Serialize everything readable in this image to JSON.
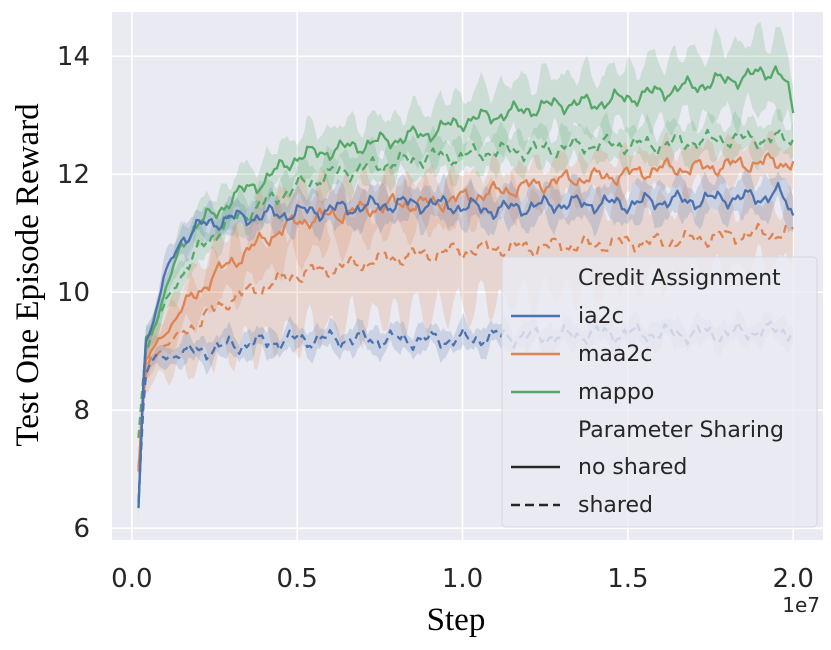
{
  "chart_data": {
    "type": "line",
    "title": "",
    "xlabel": "Step",
    "ylabel": "Test One Episode Reward",
    "x_offset_label": "1e7",
    "xlim": [
      -0.06,
      2.09
    ],
    "ylim": [
      5.8,
      14.75
    ],
    "xticks": [
      0.0,
      0.5,
      1.0,
      1.5,
      2.0
    ],
    "xtick_labels": [
      "0.0",
      "0.5",
      "1.0",
      "1.5",
      "2.0"
    ],
    "yticks": [
      6,
      8,
      10,
      12,
      14
    ],
    "ytick_labels": [
      "6",
      "8",
      "10",
      "12",
      "14"
    ],
    "grid": true,
    "legend_position": "bottom-right",
    "legend": {
      "hue_title": "Credit Assignment",
      "style_title": "Parameter Sharing",
      "hue_entries": [
        "ia2c",
        "maa2c",
        "mappo"
      ],
      "style_entries": [
        "no shared",
        "shared"
      ]
    },
    "colors": {
      "ia2c": "#4c72b0",
      "maa2c": "#dd8452",
      "mappo": "#55a868",
      "background": "#eaeaf2",
      "grid": "#ffffff"
    },
    "series": [
      {
        "name": "mappo no shared",
        "algorithm": "mappo",
        "sharing": "no shared",
        "x": [
          0.02,
          0.04,
          0.06,
          0.1,
          0.15,
          0.2,
          0.25,
          0.3,
          0.4,
          0.5,
          0.6,
          0.7,
          0.8,
          0.9,
          1.0,
          1.1,
          1.2,
          1.3,
          1.4,
          1.5,
          1.6,
          1.7,
          1.8,
          1.9,
          1.95,
          1.98,
          2.0
        ],
        "y": [
          6.3,
          9.2,
          9.3,
          10.0,
          10.8,
          11.2,
          11.3,
          11.6,
          11.9,
          12.3,
          12.4,
          12.5,
          12.6,
          12.7,
          12.9,
          13.0,
          13.1,
          13.2,
          13.2,
          13.3,
          13.4,
          13.5,
          13.6,
          13.7,
          13.8,
          13.5,
          13.0
        ],
        "band": [
          0.15,
          0.25,
          0.25,
          0.25,
          0.3,
          0.3,
          0.3,
          0.35,
          0.35,
          0.4,
          0.4,
          0.4,
          0.4,
          0.45,
          0.45,
          0.5,
          0.5,
          0.5,
          0.5,
          0.5,
          0.55,
          0.55,
          0.6,
          0.6,
          0.6,
          0.6,
          0.6
        ]
      },
      {
        "name": "mappo shared",
        "algorithm": "mappo",
        "sharing": "shared",
        "x": [
          0.02,
          0.04,
          0.06,
          0.1,
          0.15,
          0.2,
          0.25,
          0.3,
          0.4,
          0.5,
          0.6,
          0.7,
          0.8,
          0.9,
          1.0,
          1.1,
          1.2,
          1.3,
          1.4,
          1.5,
          1.6,
          1.7,
          1.8,
          1.9,
          1.95,
          2.0
        ],
        "y": [
          7.5,
          9.0,
          9.3,
          9.8,
          10.3,
          10.7,
          11.0,
          11.2,
          11.5,
          11.8,
          12.0,
          12.1,
          12.2,
          12.3,
          12.3,
          12.4,
          12.4,
          12.45,
          12.5,
          12.5,
          12.5,
          12.55,
          12.6,
          12.6,
          12.6,
          12.6
        ],
        "band": [
          0.15,
          0.2,
          0.2,
          0.25,
          0.25,
          0.25,
          0.25,
          0.3,
          0.3,
          0.3,
          0.3,
          0.3,
          0.3,
          0.3,
          0.3,
          0.3,
          0.3,
          0.3,
          0.3,
          0.3,
          0.3,
          0.3,
          0.3,
          0.3,
          0.3,
          0.3
        ]
      },
      {
        "name": "maa2c no shared",
        "algorithm": "maa2c",
        "sharing": "no shared",
        "x": [
          0.02,
          0.04,
          0.06,
          0.1,
          0.15,
          0.2,
          0.25,
          0.3,
          0.4,
          0.5,
          0.6,
          0.7,
          0.8,
          0.9,
          1.0,
          1.1,
          1.2,
          1.3,
          1.4,
          1.5,
          1.6,
          1.7,
          1.8,
          1.9,
          1.95,
          2.0
        ],
        "y": [
          7.0,
          8.8,
          9.0,
          9.3,
          9.7,
          10.0,
          10.3,
          10.5,
          10.9,
          11.2,
          11.3,
          11.4,
          11.5,
          11.5,
          11.6,
          11.7,
          11.8,
          11.9,
          11.95,
          12.0,
          12.1,
          12.1,
          12.15,
          12.2,
          12.2,
          12.2
        ],
        "band": [
          0.2,
          0.3,
          0.3,
          0.35,
          0.4,
          0.45,
          0.5,
          0.55,
          0.6,
          0.6,
          0.55,
          0.5,
          0.45,
          0.45,
          0.4,
          0.4,
          0.35,
          0.35,
          0.35,
          0.35,
          0.35,
          0.35,
          0.35,
          0.35,
          0.35,
          0.35
        ]
      },
      {
        "name": "maa2c shared",
        "algorithm": "maa2c",
        "sharing": "shared",
        "x": [
          0.02,
          0.04,
          0.06,
          0.1,
          0.15,
          0.2,
          0.25,
          0.3,
          0.4,
          0.5,
          0.6,
          0.7,
          0.8,
          0.9,
          1.0,
          1.1,
          1.2,
          1.3,
          1.4,
          1.5,
          1.6,
          1.7,
          1.8,
          1.9,
          1.95,
          2.0
        ],
        "y": [
          7.0,
          8.6,
          8.9,
          9.1,
          9.3,
          9.5,
          9.7,
          9.9,
          10.1,
          10.3,
          10.4,
          10.5,
          10.6,
          10.65,
          10.7,
          10.75,
          10.75,
          10.8,
          10.8,
          10.85,
          10.85,
          10.9,
          10.95,
          11.0,
          11.0,
          11.0
        ],
        "band": [
          0.2,
          0.3,
          0.4,
          0.5,
          0.6,
          0.7,
          0.8,
          0.9,
          1.0,
          1.0,
          1.0,
          1.0,
          1.0,
          1.0,
          0.95,
          0.9,
          0.85,
          0.8,
          0.75,
          0.7,
          0.65,
          0.6,
          0.55,
          0.5,
          0.45,
          0.45
        ]
      },
      {
        "name": "ia2c no shared",
        "algorithm": "ia2c",
        "sharing": "no shared",
        "x": [
          0.02,
          0.04,
          0.06,
          0.1,
          0.15,
          0.2,
          0.25,
          0.3,
          0.4,
          0.5,
          0.6,
          0.7,
          0.8,
          0.9,
          1.0,
          1.1,
          1.2,
          1.3,
          1.4,
          1.5,
          1.6,
          1.7,
          1.8,
          1.9,
          1.95,
          1.98,
          2.0
        ],
        "y": [
          6.3,
          9.2,
          9.4,
          10.3,
          10.9,
          11.1,
          11.2,
          11.25,
          11.3,
          11.35,
          11.4,
          11.45,
          11.5,
          11.5,
          11.45,
          11.4,
          11.45,
          11.5,
          11.5,
          11.5,
          11.55,
          11.55,
          11.6,
          11.6,
          11.7,
          11.5,
          11.3
        ],
        "band": [
          0.15,
          0.2,
          0.2,
          0.25,
          0.25,
          0.25,
          0.25,
          0.25,
          0.25,
          0.3,
          0.3,
          0.3,
          0.3,
          0.3,
          0.3,
          0.3,
          0.3,
          0.3,
          0.3,
          0.3,
          0.3,
          0.3,
          0.3,
          0.3,
          0.3,
          0.3,
          0.3
        ]
      },
      {
        "name": "ia2c shared",
        "algorithm": "ia2c",
        "sharing": "shared",
        "x": [
          0.02,
          0.04,
          0.06,
          0.1,
          0.15,
          0.2,
          0.3,
          0.4,
          0.5,
          0.6,
          0.7,
          0.8,
          0.9,
          1.0,
          1.1,
          1.2,
          1.3,
          1.4,
          1.5,
          1.6,
          1.7,
          1.8,
          1.9,
          2.0
        ],
        "y": [
          6.5,
          8.6,
          8.85,
          8.9,
          8.95,
          9.0,
          9.1,
          9.15,
          9.2,
          9.2,
          9.2,
          9.2,
          9.2,
          9.2,
          9.25,
          9.25,
          9.25,
          9.3,
          9.3,
          9.3,
          9.3,
          9.3,
          9.35,
          9.35
        ],
        "band": [
          0.1,
          0.15,
          0.15,
          0.15,
          0.2,
          0.2,
          0.2,
          0.2,
          0.2,
          0.2,
          0.2,
          0.2,
          0.2,
          0.2,
          0.2,
          0.2,
          0.2,
          0.2,
          0.2,
          0.2,
          0.2,
          0.2,
          0.2,
          0.2
        ]
      }
    ]
  }
}
